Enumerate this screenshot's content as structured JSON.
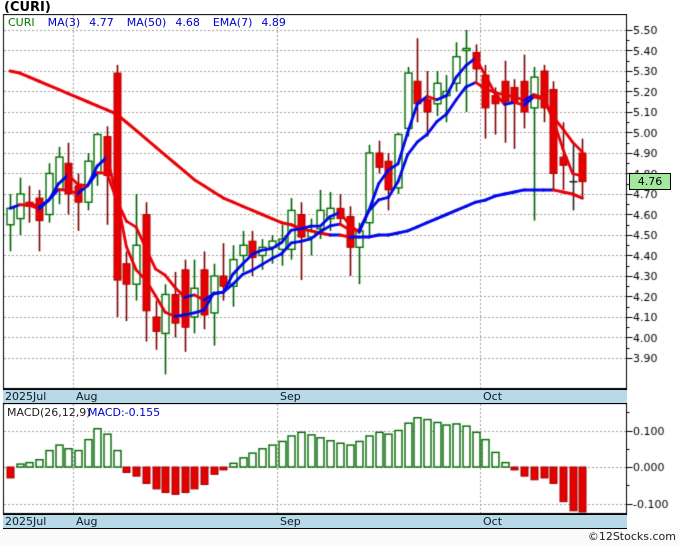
{
  "window": {
    "title": "(CURI)",
    "copyright": "©12Stocks.com"
  },
  "legend": {
    "symbol": "CURI",
    "items": [
      {
        "label": "MA(3)",
        "value": "4.77"
      },
      {
        "label": "MA(50)",
        "value": "4.68"
      },
      {
        "label": "EMA(7)",
        "value": "4.89"
      }
    ]
  },
  "macd_header": {
    "label": "MACD(26,12,9)",
    "value_label": "MACD:-0.155"
  },
  "price_badge": {
    "value": "4.76"
  },
  "months": [
    {
      "label": "2025Jul"
    },
    {
      "label": "Aug"
    },
    {
      "label": "Sep"
    },
    {
      "label": "Oct"
    }
  ],
  "colors": {
    "candle_up_border": "#007000",
    "candle_up_wick": "#006000",
    "candle_down_fill": "#e60000",
    "candle_down_border": "#b00000",
    "candle_down_wick": "#7a0000",
    "ma_up": "#0008e8",
    "ma_down": "#e80008",
    "grid": "#a0a0a0",
    "axis": "#000000",
    "macd_pos_border": "#006600",
    "macd_neg_fill": "#e60000",
    "macd_neg_border": "#990000",
    "strip_bg": "#b7d9e8",
    "badge_bg": "#a4e8a0",
    "doji": "#222222"
  },
  "chart_data": {
    "type": "candlestick",
    "title": "(CURI)",
    "panes": [
      "price with MA(3), MA(50), EMA(7)",
      "MACD(26,12,9) histogram"
    ],
    "price_axis": {
      "min": 3.9,
      "max": 5.5,
      "tick_step": 0.1,
      "labels": [
        "5.50",
        "5.40",
        "5.30",
        "5.20",
        "5.10",
        "5.00",
        "4.90",
        "4.80",
        "4.70",
        "4.60",
        "4.50",
        "4.40",
        "4.30",
        "4.20",
        "4.10",
        "4.00",
        "3.90"
      ]
    },
    "macd_axis": {
      "min": -0.17,
      "max": 0.17,
      "labels": [
        "0.100",
        "0.000",
        "-0.100"
      ],
      "label_values": [
        0.1,
        0.0,
        -0.1
      ]
    },
    "month_start_indices": [
      0,
      7,
      28,
      49
    ],
    "last_price": 4.76,
    "macd_last": -0.155,
    "candles_format": [
      "open",
      "high",
      "low",
      "close"
    ],
    "candles": [
      [
        4.55,
        4.7,
        4.42,
        4.63
      ],
      [
        4.58,
        4.78,
        4.5,
        4.7
      ],
      [
        4.66,
        4.74,
        4.56,
        4.64
      ],
      [
        4.68,
        4.72,
        4.42,
        4.57
      ],
      [
        4.6,
        4.85,
        4.56,
        4.8
      ],
      [
        4.72,
        4.93,
        4.65,
        4.88
      ],
      [
        4.85,
        4.95,
        4.6,
        4.7
      ],
      [
        4.74,
        4.8,
        4.52,
        4.66
      ],
      [
        4.66,
        4.9,
        4.62,
        4.86
      ],
      [
        4.8,
        5.0,
        4.74,
        4.99
      ],
      [
        4.98,
        5.03,
        4.55,
        4.79
      ],
      [
        5.29,
        5.33,
        4.1,
        4.28
      ],
      [
        4.36,
        4.42,
        4.08,
        4.26
      ],
      [
        4.26,
        4.7,
        4.18,
        4.45
      ],
      [
        4.6,
        4.66,
        3.98,
        4.13
      ],
      [
        4.1,
        4.18,
        3.94,
        4.03
      ],
      [
        4.02,
        4.26,
        3.82,
        4.21
      ],
      [
        4.21,
        4.32,
        4.0,
        4.07
      ],
      [
        4.33,
        4.38,
        3.93,
        4.05
      ],
      [
        4.1,
        4.38,
        4.02,
        4.24
      ],
      [
        4.33,
        4.42,
        4.04,
        4.11
      ],
      [
        4.12,
        4.36,
        3.96,
        4.3
      ],
      [
        4.3,
        4.46,
        4.18,
        4.25
      ],
      [
        4.25,
        4.45,
        4.15,
        4.38
      ],
      [
        4.4,
        4.52,
        4.32,
        4.45
      ],
      [
        4.47,
        4.52,
        4.3,
        4.39
      ],
      [
        4.4,
        4.48,
        4.33,
        4.44
      ],
      [
        4.44,
        4.5,
        4.36,
        4.47
      ],
      [
        4.43,
        4.55,
        4.35,
        4.48
      ],
      [
        4.43,
        4.68,
        4.38,
        4.62
      ],
      [
        4.6,
        4.66,
        4.28,
        4.49
      ],
      [
        4.49,
        4.58,
        4.4,
        4.52
      ],
      [
        4.53,
        4.72,
        4.48,
        4.62
      ],
      [
        4.58,
        4.71,
        4.52,
        4.63
      ],
      [
        4.63,
        4.7,
        4.55,
        4.58
      ],
      [
        4.59,
        4.64,
        4.3,
        4.44
      ],
      [
        4.44,
        4.56,
        4.26,
        4.52
      ],
      [
        4.56,
        4.94,
        4.5,
        4.9
      ],
      [
        4.9,
        4.96,
        4.8,
        4.83
      ],
      [
        4.86,
        4.9,
        4.62,
        4.72
      ],
      [
        4.73,
        5.0,
        4.7,
        4.99
      ],
      [
        5.02,
        5.32,
        4.98,
        5.29
      ],
      [
        5.25,
        5.46,
        5.05,
        5.14
      ],
      [
        5.16,
        5.3,
        4.98,
        5.1
      ],
      [
        5.14,
        5.3,
        5.08,
        5.24
      ],
      [
        5.18,
        5.28,
        5.05,
        5.2
      ],
      [
        5.24,
        5.44,
        5.2,
        5.37
      ],
      [
        5.4,
        5.5,
        5.1,
        5.41
      ],
      [
        5.39,
        5.43,
        5.25,
        5.31
      ],
      [
        5.28,
        5.33,
        4.97,
        5.12
      ],
      [
        5.18,
        5.22,
        4.99,
        5.14
      ],
      [
        5.25,
        5.35,
        4.95,
        5.15
      ],
      [
        5.22,
        5.26,
        4.92,
        5.15
      ],
      [
        5.25,
        5.38,
        5.02,
        5.1
      ],
      [
        5.12,
        5.32,
        4.57,
        5.27
      ],
      [
        5.3,
        5.33,
        5.05,
        5.12
      ],
      [
        5.21,
        5.25,
        4.72,
        4.8
      ],
      [
        4.88,
        5.05,
        4.72,
        4.84
      ],
      [
        4.76,
        4.95,
        4.62,
        4.76
      ],
      [
        4.9,
        4.97,
        4.68,
        4.76
      ]
    ],
    "ma50": [
      5.3,
      5.29,
      5.27,
      5.25,
      5.23,
      5.21,
      5.19,
      5.17,
      5.15,
      5.13,
      5.11,
      5.09,
      5.05,
      5.01,
      4.97,
      4.93,
      4.89,
      4.85,
      4.81,
      4.77,
      4.74,
      4.71,
      4.68,
      4.66,
      4.64,
      4.62,
      4.6,
      4.58,
      4.56,
      4.55,
      4.53,
      4.52,
      4.51,
      4.5,
      4.5,
      4.49,
      4.49,
      4.49,
      4.5,
      4.5,
      4.51,
      4.52,
      4.54,
      4.56,
      4.58,
      4.6,
      4.62,
      4.64,
      4.66,
      4.67,
      4.69,
      4.7,
      4.71,
      4.72,
      4.72,
      4.72,
      4.72,
      4.71,
      4.7,
      4.68
    ],
    "macd_hist": [
      -0.03,
      0.008,
      0.012,
      0.02,
      0.045,
      0.06,
      0.05,
      0.045,
      0.075,
      0.105,
      0.09,
      0.045,
      -0.015,
      -0.025,
      -0.045,
      -0.06,
      -0.07,
      -0.075,
      -0.07,
      -0.06,
      -0.048,
      -0.02,
      -0.008,
      0.01,
      0.025,
      0.038,
      0.05,
      0.06,
      0.07,
      0.085,
      0.095,
      0.088,
      0.08,
      0.072,
      0.065,
      0.06,
      0.07,
      0.085,
      0.095,
      0.09,
      0.1,
      0.12,
      0.135,
      0.13,
      0.122,
      0.115,
      0.118,
      0.112,
      0.095,
      0.075,
      0.04,
      0.012,
      -0.008,
      -0.025,
      -0.035,
      -0.03,
      -0.045,
      -0.095,
      -0.12,
      -0.155
    ]
  }
}
